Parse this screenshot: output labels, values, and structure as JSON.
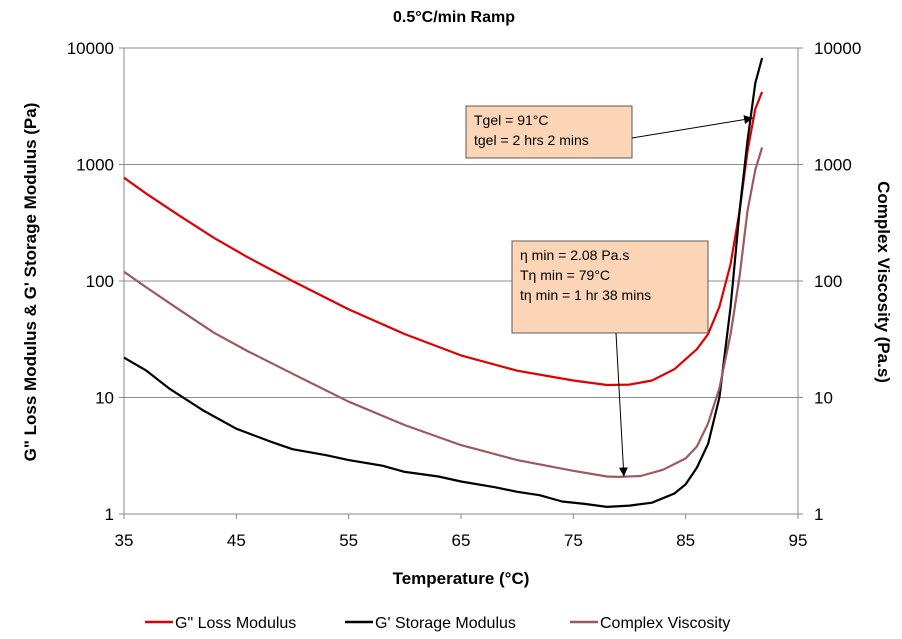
{
  "chart_data": {
    "type": "line",
    "title": "0.5°C/min Ramp",
    "xlabel": "Temperature (°C)",
    "ylabel_left": "G\" Loss Modulus & G' Storage Modulus (Pa)",
    "ylabel_right": "Complex Viscosity (Pa.s)",
    "xlim": [
      35,
      95
    ],
    "ylim": [
      1,
      10000
    ],
    "y_scale": "log",
    "x_ticks": [
      "35",
      "45",
      "55",
      "65",
      "75",
      "85",
      "95"
    ],
    "y_ticks_left": [
      "1",
      "10",
      "100",
      "1000",
      "10000"
    ],
    "y_ticks_right": [
      "1",
      "10",
      "100",
      "1000",
      "10000"
    ],
    "grid": "horizontal",
    "legend_position": "bottom",
    "series": [
      {
        "name": "G\" Loss Modulus",
        "color": "#e00000",
        "axis": "left",
        "points": [
          [
            35,
            770
          ],
          [
            37,
            560
          ],
          [
            40,
            360
          ],
          [
            43,
            235
          ],
          [
            46,
            160
          ],
          [
            50,
            100
          ],
          [
            55,
            57
          ],
          [
            60,
            35
          ],
          [
            65,
            23
          ],
          [
            70,
            17
          ],
          [
            75,
            14
          ],
          [
            78,
            12.8
          ],
          [
            80,
            12.9
          ],
          [
            82,
            14
          ],
          [
            84,
            17.5
          ],
          [
            86,
            26
          ],
          [
            87,
            35
          ],
          [
            88,
            60
          ],
          [
            89,
            140
          ],
          [
            89.8,
            400
          ],
          [
            90.5,
            1300
          ],
          [
            91.2,
            3000
          ],
          [
            91.8,
            4200
          ]
        ]
      },
      {
        "name": "G' Storage Modulus",
        "color": "#000000",
        "axis": "left",
        "points": [
          [
            35,
            22
          ],
          [
            37,
            17
          ],
          [
            39,
            12
          ],
          [
            42,
            7.8
          ],
          [
            45,
            5.4
          ],
          [
            48,
            4.2
          ],
          [
            50,
            3.6
          ],
          [
            53,
            3.2
          ],
          [
            55,
            2.9
          ],
          [
            58,
            2.6
          ],
          [
            60,
            2.3
          ],
          [
            63,
            2.1
          ],
          [
            65,
            1.9
          ],
          [
            68,
            1.7
          ],
          [
            70,
            1.55
          ],
          [
            72,
            1.45
          ],
          [
            74,
            1.28
          ],
          [
            76,
            1.22
          ],
          [
            78,
            1.15
          ],
          [
            80,
            1.18
          ],
          [
            82,
            1.25
          ],
          [
            84,
            1.5
          ],
          [
            85,
            1.8
          ],
          [
            86,
            2.5
          ],
          [
            87,
            4
          ],
          [
            88,
            10
          ],
          [
            89,
            60
          ],
          [
            89.8,
            400
          ],
          [
            90.5,
            1600
          ],
          [
            91.2,
            5000
          ],
          [
            91.8,
            8200
          ]
        ]
      },
      {
        "name": "Complex Viscosity",
        "color": "#9a5a60",
        "axis": "right",
        "points": [
          [
            35,
            120
          ],
          [
            37,
            88
          ],
          [
            40,
            56
          ],
          [
            43,
            36
          ],
          [
            46,
            25
          ],
          [
            50,
            16
          ],
          [
            55,
            9.2
          ],
          [
            60,
            5.8
          ],
          [
            65,
            3.9
          ],
          [
            70,
            2.9
          ],
          [
            75,
            2.35
          ],
          [
            78,
            2.1
          ],
          [
            79,
            2.08
          ],
          [
            81,
            2.12
          ],
          [
            83,
            2.4
          ],
          [
            85,
            3
          ],
          [
            86,
            3.8
          ],
          [
            87,
            6
          ],
          [
            88,
            12
          ],
          [
            89,
            35
          ],
          [
            89.8,
            110
          ],
          [
            90.5,
            400
          ],
          [
            91.2,
            900
          ],
          [
            91.8,
            1400
          ]
        ]
      }
    ],
    "annotations": [
      {
        "id": "gel",
        "lines": [
          "Tgel = 91°C",
          "tgel =  2 hrs 2 mins"
        ],
        "arrow_to": [
          91,
          2500
        ],
        "fill": "#fbd5b5"
      },
      {
        "id": "eta",
        "lines": [
          "η min = 2.08 Pa.s",
          "Tη min = 79°C",
          "tη min =  1 hr 38 mins"
        ],
        "arrow_to": [
          79.5,
          2.1
        ],
        "fill": "#fbd5b5"
      }
    ]
  }
}
